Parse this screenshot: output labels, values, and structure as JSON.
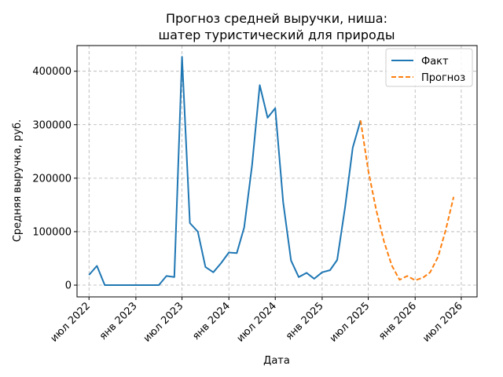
{
  "chart_data": {
    "type": "line",
    "title": "Прогноз средней выручки, ниша:",
    "subtitle": "шатер туристический для природы",
    "xlabel": "Дата",
    "ylabel": "Средняя выручка, руб.",
    "xlim": [
      "2022-05-15",
      "2026-09-01"
    ],
    "ylim": [
      -22000,
      448000
    ],
    "x_ticks": [
      {
        "date": "2022-07-01",
        "label": "июл 2022"
      },
      {
        "date": "2023-01-01",
        "label": "янв 2023"
      },
      {
        "date": "2023-07-01",
        "label": "июл 2023"
      },
      {
        "date": "2024-01-01",
        "label": "янв 2024"
      },
      {
        "date": "2024-07-01",
        "label": "июл 2024"
      },
      {
        "date": "2025-01-01",
        "label": "янв 2025"
      },
      {
        "date": "2025-07-01",
        "label": "июл 2025"
      },
      {
        "date": "2026-01-01",
        "label": "янв 2026"
      },
      {
        "date": "2026-07-01",
        "label": "июл 2026"
      }
    ],
    "y_ticks": [
      {
        "value": 0,
        "label": "0"
      },
      {
        "value": 100000,
        "label": "100000"
      },
      {
        "value": 200000,
        "label": "200000"
      },
      {
        "value": 300000,
        "label": "300000"
      },
      {
        "value": 400000,
        "label": "400000"
      }
    ],
    "grid": true,
    "legend_position": "top-right",
    "series": [
      {
        "name": "Факт",
        "color": "#1f77b4",
        "style": "solid",
        "points": [
          [
            "2022-07-01",
            19000
          ],
          [
            "2022-08-01",
            36000
          ],
          [
            "2022-09-01",
            0
          ],
          [
            "2022-10-01",
            0
          ],
          [
            "2022-11-01",
            0
          ],
          [
            "2022-12-01",
            0
          ],
          [
            "2023-01-01",
            0
          ],
          [
            "2023-02-01",
            0
          ],
          [
            "2023-03-01",
            0
          ],
          [
            "2023-04-01",
            0
          ],
          [
            "2023-05-01",
            17000
          ],
          [
            "2023-06-01",
            15000
          ],
          [
            "2023-07-01",
            427000
          ],
          [
            "2023-08-01",
            116000
          ],
          [
            "2023-09-01",
            100000
          ],
          [
            "2023-10-01",
            34000
          ],
          [
            "2023-11-01",
            24000
          ],
          [
            "2023-12-01",
            41000
          ],
          [
            "2024-01-01",
            61000
          ],
          [
            "2024-02-01",
            60000
          ],
          [
            "2024-03-01",
            108000
          ],
          [
            "2024-04-01",
            224000
          ],
          [
            "2024-05-01",
            374000
          ],
          [
            "2024-06-01",
            313000
          ],
          [
            "2024-07-01",
            331000
          ],
          [
            "2024-08-01",
            155000
          ],
          [
            "2024-09-01",
            46000
          ],
          [
            "2024-10-01",
            15000
          ],
          [
            "2024-11-01",
            23000
          ],
          [
            "2024-12-01",
            12000
          ],
          [
            "2025-01-01",
            24000
          ],
          [
            "2025-02-01",
            28000
          ],
          [
            "2025-03-01",
            47000
          ],
          [
            "2025-04-01",
            146000
          ],
          [
            "2025-05-01",
            257000
          ],
          [
            "2025-06-01",
            308000
          ]
        ]
      },
      {
        "name": "Прогноз",
        "color": "#ff7f0e",
        "style": "dashed",
        "points": [
          [
            "2025-06-01",
            308000
          ],
          [
            "2025-07-01",
            214000
          ],
          [
            "2025-08-01",
            141000
          ],
          [
            "2025-09-01",
            81000
          ],
          [
            "2025-10-01",
            37000
          ],
          [
            "2025-11-01",
            10000
          ],
          [
            "2025-12-01",
            17000
          ],
          [
            "2026-01-01",
            9000
          ],
          [
            "2026-02-01",
            14000
          ],
          [
            "2026-03-01",
            24000
          ],
          [
            "2026-04-01",
            53000
          ],
          [
            "2026-05-01",
            103000
          ],
          [
            "2026-06-01",
            165000
          ]
        ]
      }
    ]
  }
}
